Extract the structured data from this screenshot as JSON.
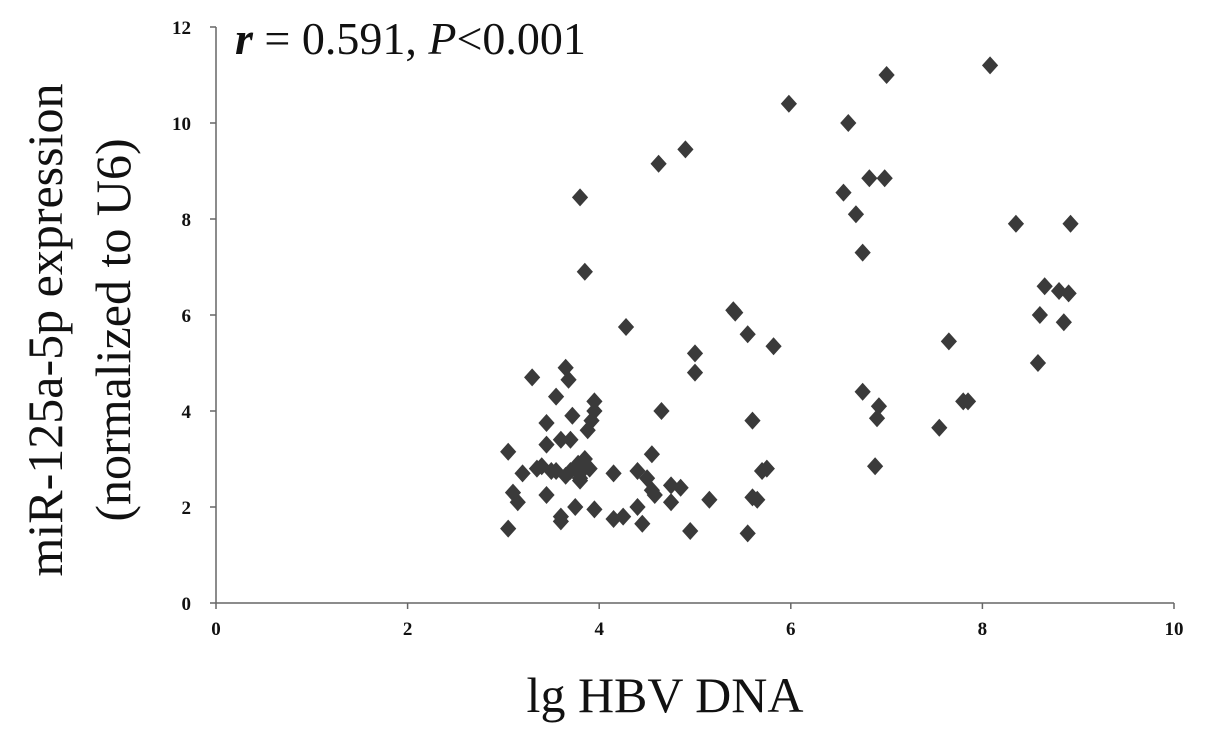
{
  "chart_data": {
    "type": "scatter",
    "title": "",
    "annotation": {
      "r_symbol": "r",
      "r_text": " = 0.591, ",
      "p_symbol": "P",
      "p_text": "<0.001"
    },
    "xlabel": "lg HBV DNA",
    "ylabel_line1": "miR-125a-5p expression",
    "ylabel_line2": "(normalized to U6)",
    "xlim": [
      0,
      10
    ],
    "ylim": [
      0,
      12
    ],
    "xticks": [
      "0",
      "2",
      "4",
      "6",
      "8",
      "10"
    ],
    "yticks": [
      "0",
      "2",
      "4",
      "6",
      "8",
      "10",
      "12"
    ],
    "grid": false,
    "marker": "diamond",
    "marker_color": "#3a3a3a",
    "points": [
      [
        3.05,
        3.15
      ],
      [
        3.1,
        2.3
      ],
      [
        3.05,
        1.55
      ],
      [
        3.15,
        2.1
      ],
      [
        3.2,
        2.7
      ],
      [
        3.3,
        4.7
      ],
      [
        3.35,
        2.8
      ],
      [
        3.4,
        2.85
      ],
      [
        3.45,
        3.3
      ],
      [
        3.45,
        3.75
      ],
      [
        3.45,
        2.25
      ],
      [
        3.5,
        2.75
      ],
      [
        3.55,
        4.3
      ],
      [
        3.55,
        2.75
      ],
      [
        3.6,
        3.4
      ],
      [
        3.6,
        1.7
      ],
      [
        3.6,
        1.8
      ],
      [
        3.65,
        4.9
      ],
      [
        3.65,
        2.65
      ],
      [
        3.68,
        4.65
      ],
      [
        3.7,
        3.4
      ],
      [
        3.7,
        2.75
      ],
      [
        3.72,
        3.9
      ],
      [
        3.75,
        2.0
      ],
      [
        3.75,
        2.8
      ],
      [
        3.78,
        2.9
      ],
      [
        3.8,
        2.6
      ],
      [
        3.8,
        2.55
      ],
      [
        3.82,
        2.75
      ],
      [
        3.8,
        8.45
      ],
      [
        3.85,
        6.9
      ],
      [
        3.85,
        3.0
      ],
      [
        3.88,
        3.6
      ],
      [
        3.9,
        2.8
      ],
      [
        3.92,
        3.8
      ],
      [
        3.95,
        4.0
      ],
      [
        3.95,
        4.2
      ],
      [
        3.95,
        1.95
      ],
      [
        4.15,
        1.75
      ],
      [
        4.15,
        2.7
      ],
      [
        4.25,
        1.8
      ],
      [
        4.28,
        5.75
      ],
      [
        4.4,
        2.0
      ],
      [
        4.4,
        2.75
      ],
      [
        4.45,
        1.65
      ],
      [
        4.5,
        2.6
      ],
      [
        4.55,
        2.35
      ],
      [
        4.55,
        3.1
      ],
      [
        4.58,
        2.25
      ],
      [
        4.62,
        9.15
      ],
      [
        4.65,
        4.0
      ],
      [
        4.75,
        2.45
      ],
      [
        4.75,
        2.1
      ],
      [
        4.85,
        2.4
      ],
      [
        4.9,
        9.45
      ],
      [
        4.95,
        1.5
      ],
      [
        5.0,
        5.2
      ],
      [
        5.0,
        4.8
      ],
      [
        5.15,
        2.15
      ],
      [
        5.4,
        6.1
      ],
      [
        5.42,
        6.05
      ],
      [
        5.55,
        5.6
      ],
      [
        5.55,
        1.45
      ],
      [
        5.6,
        3.8
      ],
      [
        5.6,
        2.2
      ],
      [
        5.65,
        2.15
      ],
      [
        5.7,
        2.75
      ],
      [
        5.75,
        2.8
      ],
      [
        5.82,
        5.35
      ],
      [
        5.98,
        10.4
      ],
      [
        6.55,
        8.55
      ],
      [
        6.6,
        10.0
      ],
      [
        6.68,
        8.1
      ],
      [
        6.75,
        7.3
      ],
      [
        6.75,
        4.4
      ],
      [
        6.82,
        8.85
      ],
      [
        6.88,
        2.85
      ],
      [
        6.9,
        3.85
      ],
      [
        6.92,
        4.1
      ],
      [
        6.98,
        8.85
      ],
      [
        7.0,
        11.0
      ],
      [
        7.55,
        3.65
      ],
      [
        7.65,
        5.45
      ],
      [
        7.8,
        4.2
      ],
      [
        7.85,
        4.2
      ],
      [
        8.08,
        11.2
      ],
      [
        8.35,
        7.9
      ],
      [
        8.58,
        5.0
      ],
      [
        8.6,
        6.0
      ],
      [
        8.65,
        6.6
      ],
      [
        8.8,
        6.5
      ],
      [
        8.85,
        5.85
      ],
      [
        8.9,
        6.45
      ],
      [
        8.92,
        7.9
      ]
    ]
  }
}
